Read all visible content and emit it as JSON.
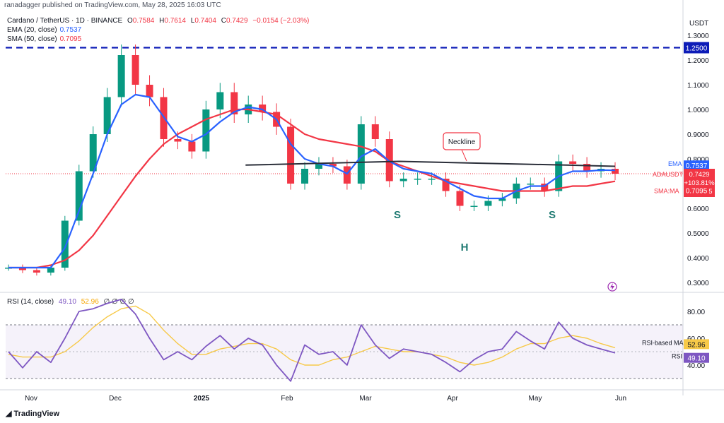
{
  "header": {
    "publish_line": "ranadagger published on TradingView.com, May 28, 2025 16:03 UTC"
  },
  "legend": {
    "symbol_line": "Cardano / TetherUS · 1D · BINANCE",
    "ohlc": {
      "o_label": "O",
      "o": "0.7584",
      "h_label": "H",
      "h": "0.7614",
      "l_label": "L",
      "l": "0.7404",
      "c_label": "C",
      "c": "0.7429",
      "change": "−0.0154 (−2.03%)"
    },
    "ema_label": "EMA (20, close)",
    "ema_value": "0.7537",
    "sma_label": "SMA (50, close)",
    "sma_value": "0.7095",
    "rsi_label": "RSI (14, close)",
    "rsi_value": "49.10",
    "rsi_ma_value": "52.96",
    "rsi_extra": "∅ ∅ ∅ ∅"
  },
  "price_scale": {
    "currency": "USDT",
    "ticks": [
      "1.3000",
      "1.2000",
      "1.1000",
      "1.0000",
      "0.9000",
      "0.8000",
      "0.6000",
      "0.5000",
      "0.4000",
      "0.3000"
    ],
    "resistance_label": "1.2500",
    "ema_badge": "EMA",
    "ema_badge_value": "0.7537",
    "price_badge": "ADAUSDT",
    "price_badge_lines": [
      "0.7429",
      "+103.81%",
      "07:56:55"
    ],
    "sma_badge": "SMA:MA",
    "sma_badge_value": "0.7095"
  },
  "rsi_scale": {
    "ticks": [
      "80.00",
      "60.00",
      "40.00"
    ],
    "ma_badge": "RSI-based MA",
    "ma_badge_value": "52.96",
    "rsi_badge": "RSI",
    "rsi_badge_value": "49.10"
  },
  "time_axis": [
    "Nov",
    "Dec",
    "2025",
    "Feb",
    "Mar",
    "Apr",
    "May",
    "Jun"
  ],
  "annotations": {
    "neckline": "Neckline",
    "left_shoulder": "S",
    "head": "H",
    "right_shoulder": "S"
  },
  "footer": {
    "brand": "TradingView"
  },
  "colors": {
    "up": "#089981",
    "down": "#f23645",
    "ema": "#2962ff",
    "sma": "#f23645",
    "neckline": "#2a2e39",
    "resistance": "#0d1cb8",
    "rsi": "#7e57c2",
    "rsi_ma": "#f7c948",
    "annotation": "#1f7a72"
  },
  "chart_data": {
    "type": "candlestick",
    "title": "Cardano / TetherUS · 1D · BINANCE",
    "price_ylim": [
      0.27,
      1.37
    ],
    "resistance": 1.25,
    "x": [
      "Oct 27",
      "Nov 1",
      "Nov 5",
      "Nov 10",
      "Nov 15",
      "Nov 20",
      "Nov 25",
      "Dec 1",
      "Dec 5",
      "Dec 10",
      "Dec 15",
      "Dec 20",
      "Dec 25",
      "Jan 1",
      "Jan 5",
      "Jan 10",
      "Jan 15",
      "Jan 20",
      "Jan 25",
      "Feb 1",
      "Feb 5",
      "Feb 10",
      "Feb 15",
      "Feb 20",
      "Feb 25",
      "Mar 1",
      "Mar 5",
      "Mar 10",
      "Mar 15",
      "Mar 20",
      "Mar 25",
      "Apr 1",
      "Apr 5",
      "Apr 10",
      "Apr 15",
      "Apr 20",
      "Apr 25",
      "May 1",
      "May 5",
      "May 10",
      "May 15",
      "May 20",
      "May 25",
      "May 28"
    ],
    "price": [
      0.36,
      0.35,
      0.34,
      0.36,
      0.55,
      0.75,
      0.9,
      1.05,
      1.22,
      1.1,
      1.05,
      0.88,
      0.87,
      0.83,
      1.0,
      1.07,
      0.98,
      1.02,
      0.99,
      0.93,
      0.7,
      0.76,
      0.78,
      0.77,
      0.7,
      0.94,
      0.88,
      0.71,
      0.72,
      0.72,
      0.72,
      0.67,
      0.61,
      0.61,
      0.63,
      0.64,
      0.7,
      0.7,
      0.67,
      0.79,
      0.78,
      0.75,
      0.76,
      0.74
    ],
    "ema20": [
      0.36,
      0.36,
      0.36,
      0.36,
      0.44,
      0.59,
      0.74,
      0.9,
      1.02,
      1.06,
      1.05,
      0.97,
      0.89,
      0.87,
      0.9,
      0.95,
      0.99,
      1.01,
      1.0,
      0.96,
      0.86,
      0.8,
      0.78,
      0.77,
      0.74,
      0.81,
      0.84,
      0.79,
      0.76,
      0.75,
      0.74,
      0.71,
      0.68,
      0.65,
      0.64,
      0.64,
      0.67,
      0.69,
      0.69,
      0.73,
      0.75,
      0.75,
      0.755,
      0.7537
    ],
    "sma50": [
      0.36,
      0.36,
      0.36,
      0.37,
      0.39,
      0.43,
      0.49,
      0.57,
      0.65,
      0.73,
      0.8,
      0.86,
      0.9,
      0.93,
      0.96,
      0.98,
      1.0,
      1.0,
      0.99,
      0.98,
      0.94,
      0.9,
      0.88,
      0.87,
      0.86,
      0.85,
      0.83,
      0.79,
      0.77,
      0.75,
      0.73,
      0.71,
      0.7,
      0.69,
      0.68,
      0.67,
      0.67,
      0.67,
      0.67,
      0.68,
      0.69,
      0.69,
      0.7,
      0.7095
    ],
    "neckline": [
      [
        34,
        0.775
      ],
      [
        56,
        0.79
      ],
      [
        80,
        0.775
      ],
      [
        87,
        0.77
      ]
    ],
    "rsi": {
      "ylim": [
        22,
        90
      ],
      "bands": [
        30,
        70
      ],
      "rsi": [
        50,
        38,
        50,
        42,
        60,
        80,
        82,
        86,
        89,
        78,
        60,
        44,
        50,
        44,
        54,
        62,
        52,
        60,
        55,
        40,
        28,
        55,
        48,
        50,
        40,
        70,
        55,
        45,
        52,
        50,
        48,
        42,
        35,
        44,
        50,
        52,
        65,
        58,
        52,
        72,
        60,
        55,
        52,
        49.1
      ],
      "rsi_ma": [
        48,
        46,
        46,
        46,
        50,
        58,
        68,
        76,
        82,
        84,
        78,
        66,
        56,
        48,
        48,
        52,
        54,
        56,
        56,
        52,
        44,
        40,
        40,
        44,
        46,
        50,
        54,
        52,
        50,
        50,
        48,
        46,
        42,
        40,
        42,
        46,
        52,
        56,
        56,
        60,
        62,
        60,
        56,
        52.96
      ]
    }
  }
}
